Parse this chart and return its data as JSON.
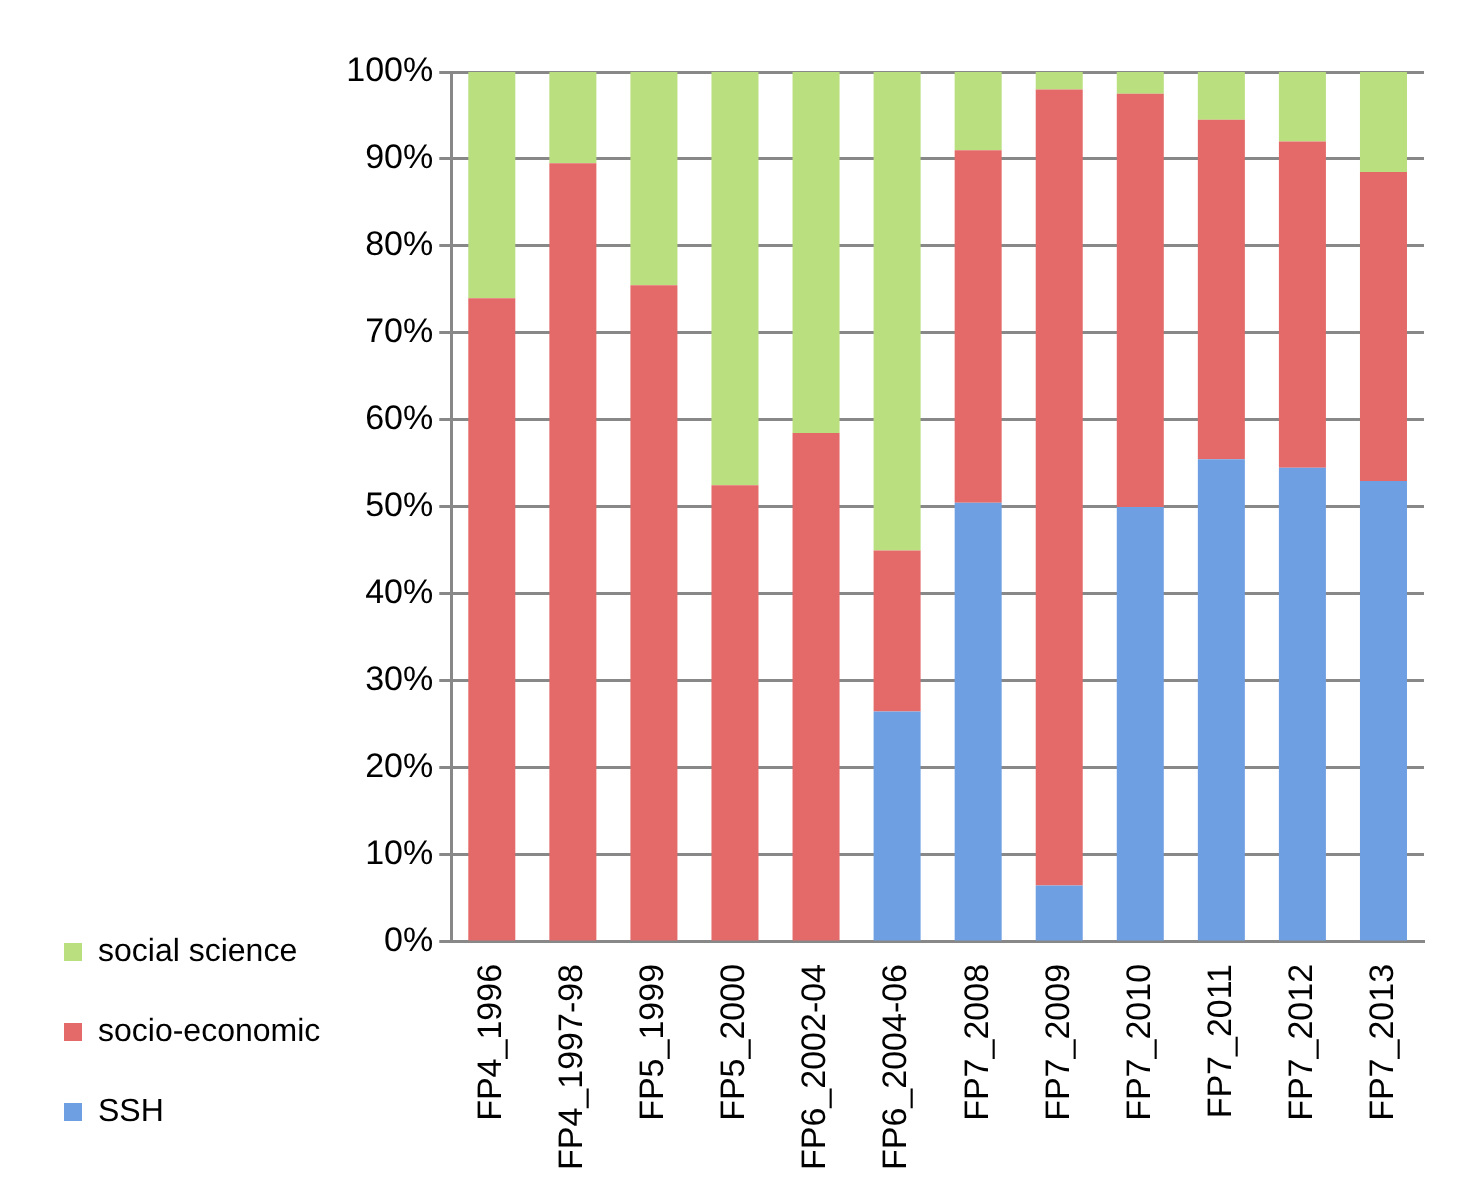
{
  "chart_data": {
    "type": "bar",
    "stacked": true,
    "categories": [
      "FP4_1996",
      "FP4_1997-98",
      "FP5_1999",
      "FP5_2000",
      "FP6_2002-04",
      "FP6_2004-06",
      "FP7_2008",
      "FP7_2009",
      "FP7_2010",
      "FP7_2011",
      "FP7_2012",
      "FP7_2013"
    ],
    "series": [
      {
        "name": "SSH",
        "color": "#6f9fe3",
        "values": [
          0,
          0,
          0,
          0,
          0,
          26.5,
          50.5,
          6.5,
          50,
          55.5,
          54.5,
          53
        ]
      },
      {
        "name": "socio-economic",
        "color": "#e46a6a",
        "values": [
          74,
          89.5,
          75.5,
          52.5,
          58.5,
          18.5,
          40.5,
          91.5,
          47.5,
          39,
          37.5,
          35.5
        ]
      },
      {
        "name": "social science",
        "color": "#b9df7e",
        "values": [
          26,
          10.5,
          24.5,
          47.5,
          41.5,
          55,
          9,
          2,
          2.5,
          5.5,
          8,
          11.5
        ]
      }
    ],
    "ylim": [
      0,
      100
    ],
    "yticks": [
      {
        "value": 0,
        "label": "0%"
      },
      {
        "value": 10,
        "label": "10%"
      },
      {
        "value": 20,
        "label": "20%"
      },
      {
        "value": 30,
        "label": "30%"
      },
      {
        "value": 40,
        "label": "40%"
      },
      {
        "value": 50,
        "label": "50%"
      },
      {
        "value": 60,
        "label": "60%"
      },
      {
        "value": 70,
        "label": "70%"
      },
      {
        "value": 80,
        "label": "80%"
      },
      {
        "value": 90,
        "label": "90%"
      },
      {
        "value": 100,
        "label": "100%"
      }
    ],
    "grid": "y",
    "legend": "bottom left"
  }
}
